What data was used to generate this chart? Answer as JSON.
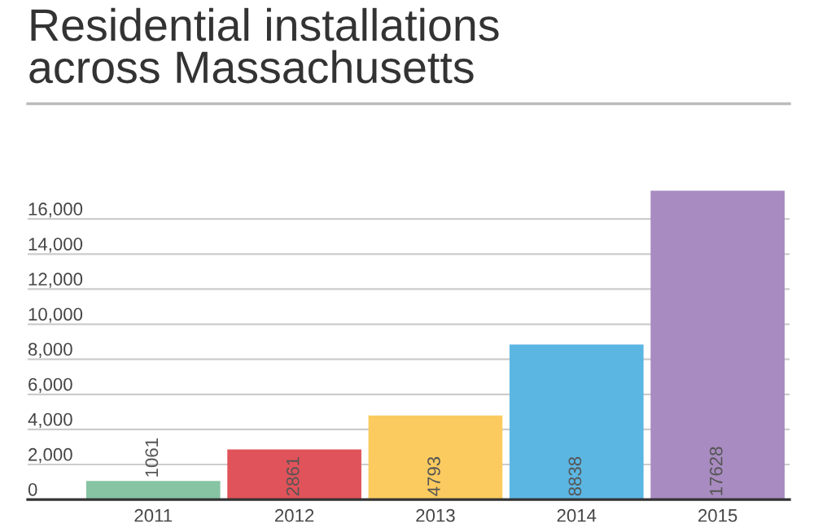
{
  "chart_data": {
    "type": "bar",
    "title": "Residential installations\nacross Massachusetts",
    "categories": [
      "2011",
      "2012",
      "2013",
      "2014",
      "2015"
    ],
    "values": [
      1061,
      2861,
      4793,
      8838,
      17628
    ],
    "colors": [
      "#86c4a4",
      "#e0535a",
      "#fccb5f",
      "#5cb6e2",
      "#a88bc0"
    ],
    "data_labels": true,
    "ylim": [
      0,
      17628
    ],
    "yticks": [
      {
        "value": 0,
        "label": "0"
      },
      {
        "value": 2000,
        "label": "2,000"
      },
      {
        "value": 4000,
        "label": "4,000"
      },
      {
        "value": 6000,
        "label": "6,000"
      },
      {
        "value": 8000,
        "label": "8,000"
      },
      {
        "value": 10000,
        "label": "10,000"
      },
      {
        "value": 12000,
        "label": "12,000"
      },
      {
        "value": 14000,
        "label": "14,000"
      },
      {
        "value": 16000,
        "label": "16,000"
      }
    ],
    "grid": "y"
  }
}
